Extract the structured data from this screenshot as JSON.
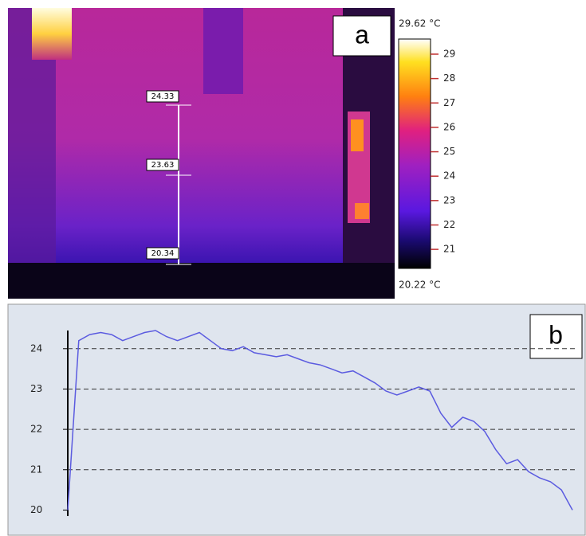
{
  "chart_data": [
    {
      "type": "colorbar",
      "panel_label": "a",
      "max_label": "29.62 °C",
      "min_label": "20.22 °C",
      "ylim": [
        20.22,
        29.62
      ],
      "yticks": [
        21,
        22,
        23,
        24,
        25,
        26,
        27,
        28,
        29
      ],
      "probe_labels": [
        "24.33",
        "23.63",
        "20.34"
      ]
    },
    {
      "type": "line",
      "panel_label": "b",
      "ylim": [
        19.85,
        24.45
      ],
      "yticks": [
        20,
        21,
        22,
        23,
        24
      ],
      "grid": true,
      "series": [
        {
          "color": "#5b5be0",
          "values": [
            20.0,
            24.2,
            24.35,
            24.4,
            24.35,
            24.2,
            24.3,
            24.4,
            24.45,
            24.3,
            24.2,
            24.3,
            24.4,
            24.2,
            24.0,
            23.95,
            24.05,
            23.9,
            23.85,
            23.8,
            23.85,
            23.75,
            23.65,
            23.6,
            23.5,
            23.4,
            23.45,
            23.3,
            23.15,
            22.95,
            22.85,
            22.95,
            23.05,
            22.95,
            22.4,
            22.05,
            22.3,
            22.2,
            21.95,
            21.5,
            21.15,
            21.25,
            20.95,
            20.8,
            20.7,
            20.5,
            20.0
          ]
        }
      ]
    }
  ]
}
